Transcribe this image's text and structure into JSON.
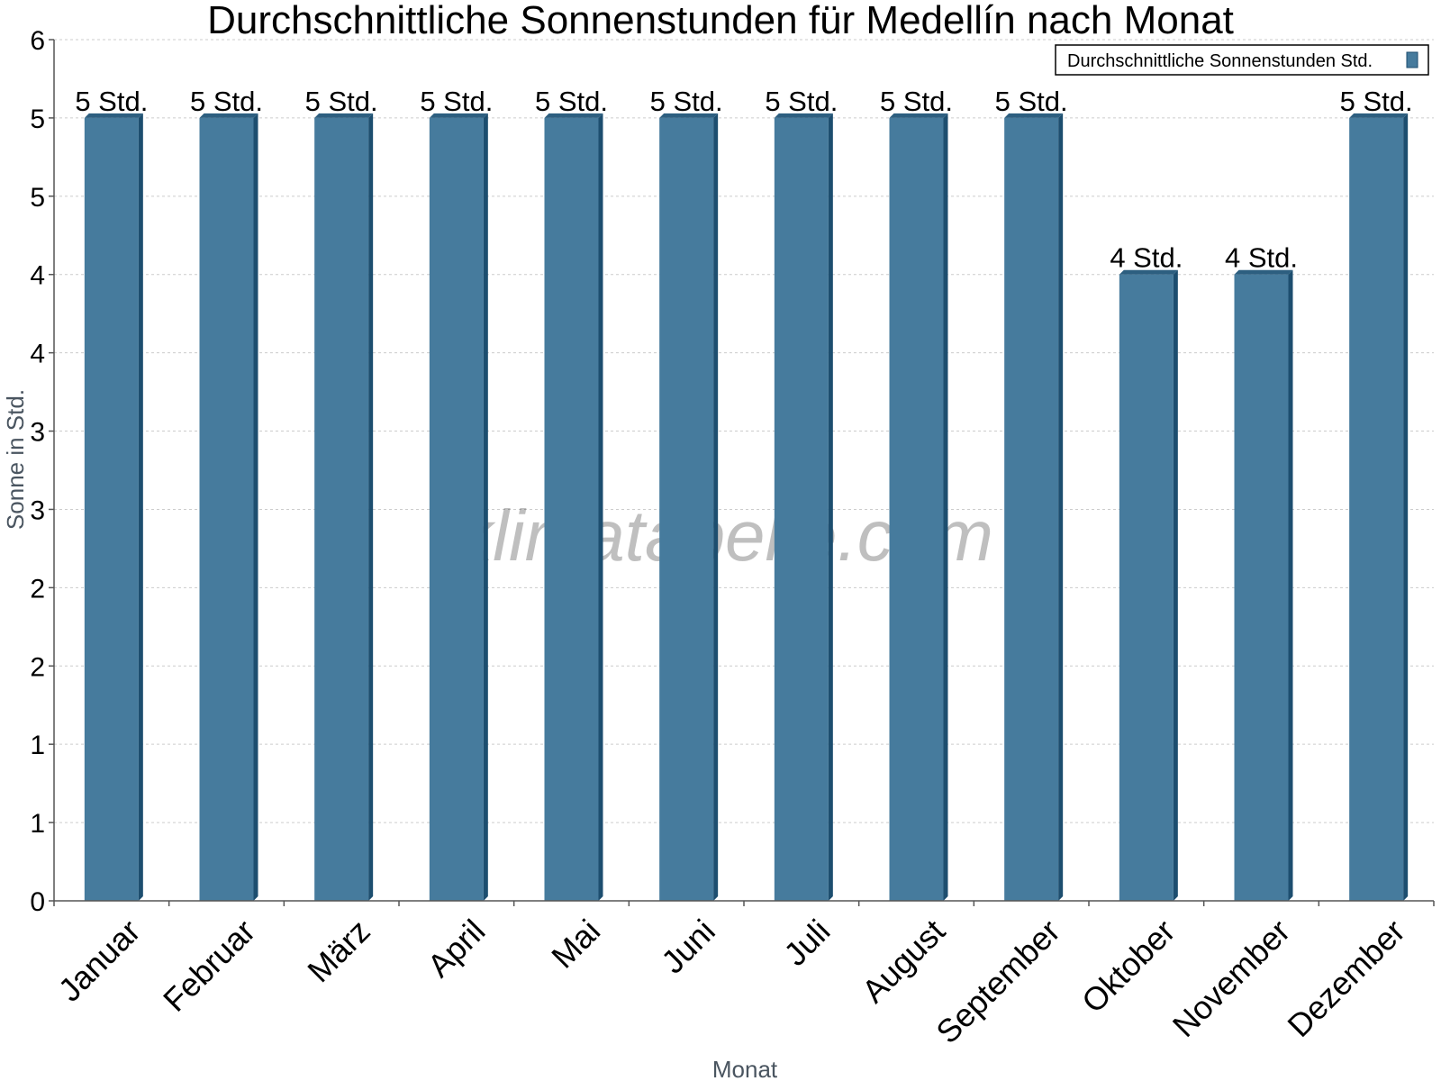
{
  "chart_data": {
    "type": "bar",
    "title": "Durchschnittliche Sonnenstunden für Medellín nach Monat",
    "xlabel": "Monat",
    "ylabel": "Sonne in Std.",
    "categories": [
      "Januar",
      "Februar",
      "März",
      "April",
      "Mai",
      "Juni",
      "Juli",
      "August",
      "September",
      "Oktober",
      "November",
      "Dezember"
    ],
    "series": [
      {
        "name": "Durchschnittliche Sonnenstunden Std.",
        "values": [
          5.0,
          5.0,
          5.0,
          5.0,
          5.0,
          5.0,
          5.0,
          5.0,
          5.0,
          4.0,
          4.0,
          5.0
        ],
        "labels": [
          "5 Std.",
          "5 Std.",
          "5 Std.",
          "5 Std.",
          "5 Std.",
          "5 Std.",
          "5 Std.",
          "5 Std.",
          "5 Std.",
          "4 Std.",
          "4 Std.",
          "5 Std."
        ]
      }
    ],
    "ylim": [
      0,
      5.5
    ],
    "yticks": [
      0,
      0.5,
      1,
      1.5,
      2,
      2.5,
      3,
      3.5,
      4,
      4.5,
      5,
      5.5
    ],
    "ytick_labels": [
      "0",
      "1",
      "1",
      "2",
      "2",
      "3",
      "3",
      "4",
      "4",
      "5",
      "5",
      "6"
    ],
    "grid": true,
    "legend_position": "top-right",
    "colors": {
      "bar": "#467b9d",
      "bar_side": "#1d4e6f",
      "bar_top": "#2d5f80",
      "grid": "#cccccc",
      "axis": "#555555"
    }
  },
  "watermark": "klimatabelle.com"
}
